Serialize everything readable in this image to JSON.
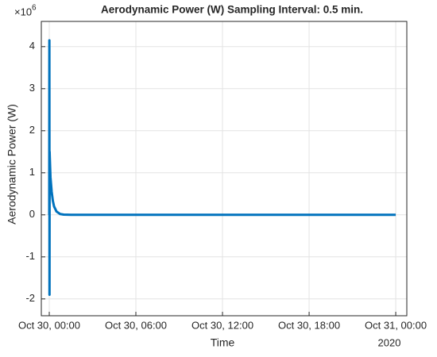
{
  "chart_data": {
    "type": "line",
    "title": "Aerodynamic Power (W) Sampling Interval: 0.5 min.",
    "ylabel": "Aerodynamic Power (W)",
    "xlabel": "Time",
    "x_secondary_label": "2020",
    "y_exponent_base": "×10",
    "y_exponent": "6",
    "x": [
      "2020-10-30 00:00:00",
      "2020-10-30 00:00:30",
      "2020-10-30 00:01:00",
      "2020-10-30 00:01:30",
      "2020-10-30 00:02:00",
      "2020-10-30 00:05:00",
      "2020-10-30 00:10:00",
      "2020-10-30 00:15:00",
      "2020-10-30 00:20:00",
      "2020-10-30 00:30:00",
      "2020-10-30 00:45:00",
      "2020-10-30 01:00:00",
      "2020-10-30 01:30:00",
      "2020-10-30 03:00:00",
      "2020-10-31 00:00:00"
    ],
    "series": [
      {
        "name": "Aerodynamic Power",
        "color": "#0072BD",
        "values": [
          0,
          4150000,
          -1900000,
          1500000,
          1400000,
          900000,
          550000,
          330000,
          200000,
          80000,
          20000,
          5000,
          0,
          0,
          0
        ]
      }
    ],
    "xlim": [
      "2020-10-29 23:27:00",
      "2020-10-31 00:46:00"
    ],
    "xticks": [
      {
        "value": "2020-10-30 00:00:00",
        "label": "Oct 30, 00:00"
      },
      {
        "value": "2020-10-30 06:00:00",
        "label": "Oct 30, 06:00"
      },
      {
        "value": "2020-10-30 12:00:00",
        "label": "Oct 30, 12:00"
      },
      {
        "value": "2020-10-30 18:00:00",
        "label": "Oct 30, 18:00"
      },
      {
        "value": "2020-10-31 00:00:00",
        "label": "Oct 31, 00:00"
      }
    ],
    "ylim": [
      -2400000,
      4600000
    ],
    "yticks": [
      {
        "value": -2000000,
        "label": "-2"
      },
      {
        "value": -1000000,
        "label": "-1"
      },
      {
        "value": 0,
        "label": "0"
      },
      {
        "value": 1000000,
        "label": "1"
      },
      {
        "value": 2000000,
        "label": "2"
      },
      {
        "value": 3000000,
        "label": "3"
      },
      {
        "value": 4000000,
        "label": "4"
      }
    ],
    "grid": true
  }
}
